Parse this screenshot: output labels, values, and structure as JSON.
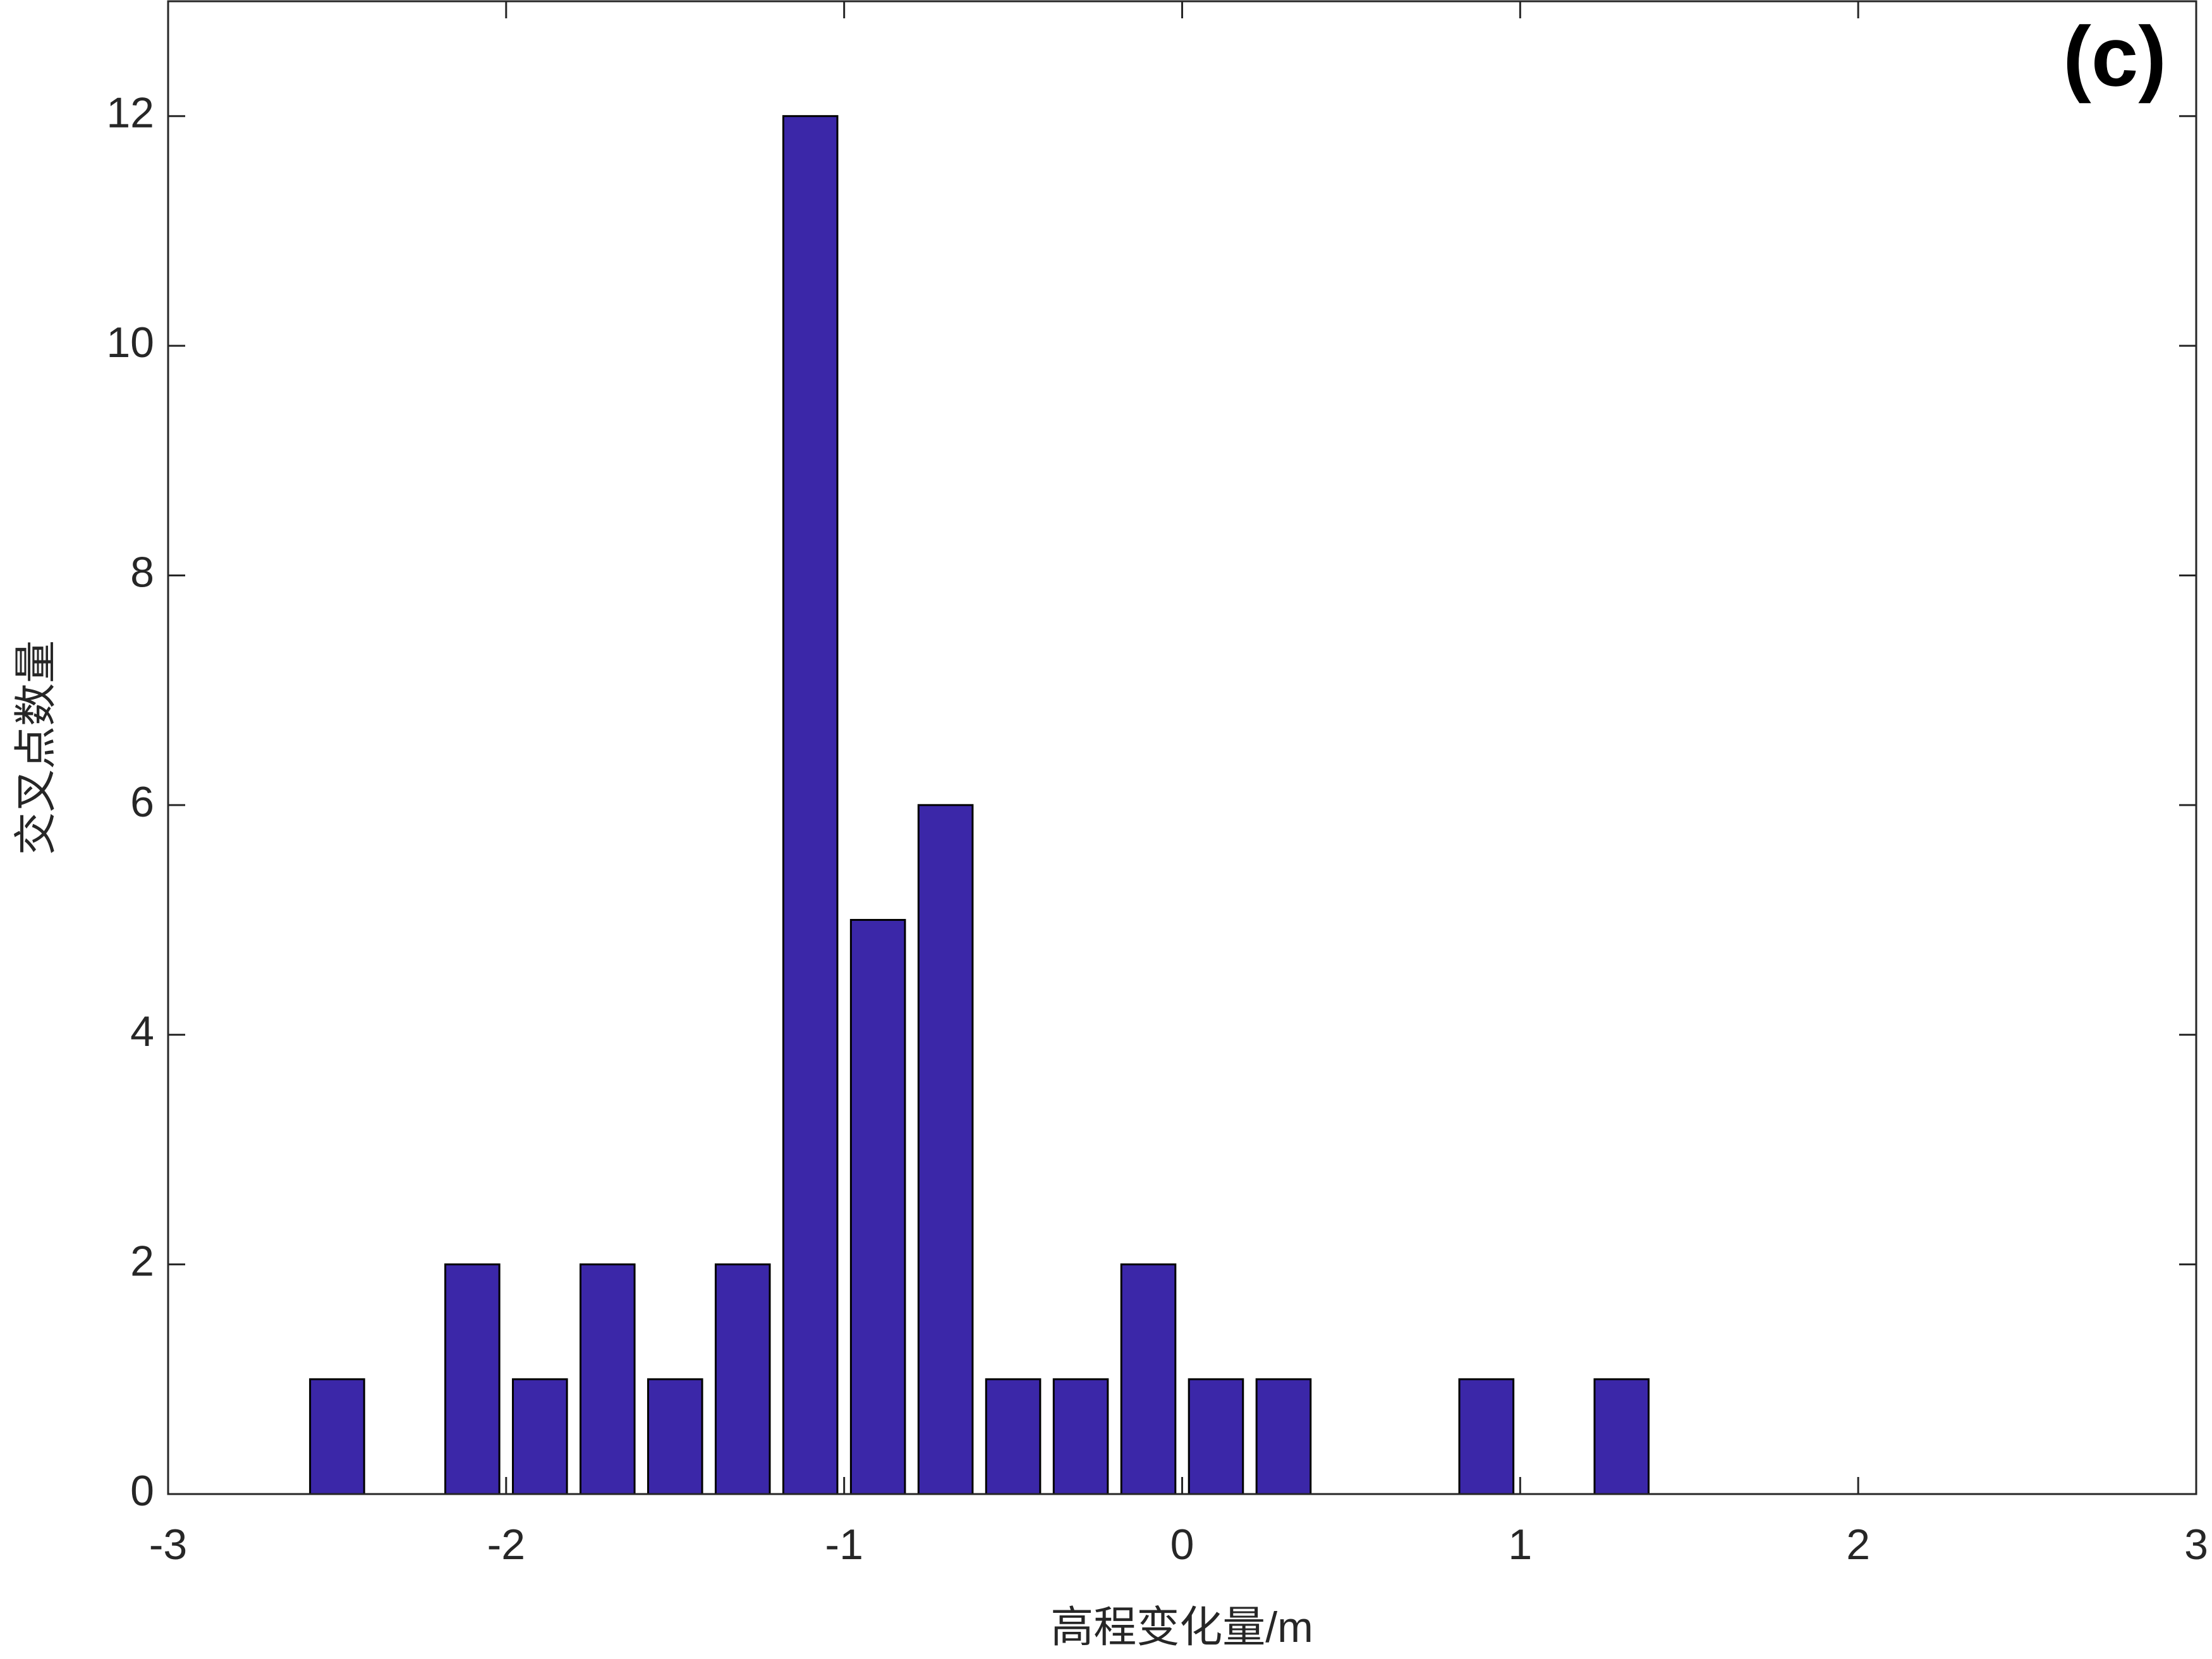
{
  "chart_data": {
    "type": "bar",
    "annotation": "(c)",
    "x_label": "高程变化量/m",
    "y_label": "交叉点数量",
    "x": [
      -2.5,
      -2.1,
      -1.9,
      -1.7,
      -1.5,
      -1.3,
      -1.1,
      -0.9,
      -0.7,
      -0.5,
      -0.3,
      -0.1,
      0.1,
      0.3,
      0.9,
      1.3
    ],
    "values": [
      1,
      2,
      1,
      2,
      1,
      2,
      12,
      5,
      6,
      1,
      1,
      2,
      1,
      1,
      1,
      1
    ],
    "color": "#3b27a8",
    "xlim": [
      -3,
      3
    ],
    "xticks": [
      -3,
      -2,
      -1,
      0,
      1,
      2,
      3
    ],
    "ylim": [
      0,
      13
    ],
    "yticks": [
      0,
      2,
      4,
      6,
      8,
      10,
      12
    ]
  }
}
